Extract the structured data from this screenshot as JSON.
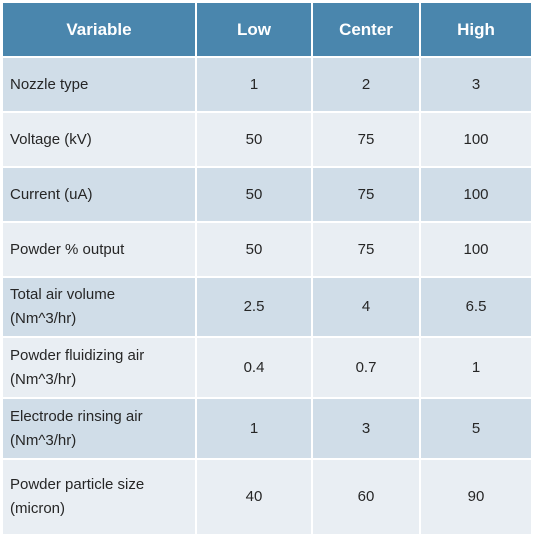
{
  "table": {
    "headers": [
      "Variable",
      "Low",
      "Center",
      "High"
    ],
    "rows": [
      [
        "Nozzle type",
        "1",
        "2",
        "3"
      ],
      [
        "Voltage (kV)",
        "50",
        "75",
        "100"
      ],
      [
        "Current (uA)",
        "50",
        "75",
        "100"
      ],
      [
        "Powder % output",
        "50",
        "75",
        "100"
      ],
      [
        "Total air volume\n(Nm^3/hr)",
        "2.5",
        "4",
        "6.5"
      ],
      [
        "Powder fluidizing air\n(Nm^3/hr)",
        "0.4",
        "0.7",
        "1"
      ],
      [
        "Electrode rinsing air\n(Nm^3/hr)",
        "1",
        "3",
        "5"
      ],
      [
        "Powder particle size\n(micron)",
        "40",
        "60",
        "90"
      ]
    ]
  },
  "colors": {
    "header_bg": "#4a86ad",
    "header_text": "#ffffff",
    "row_odd_bg": "#d0dde8",
    "row_even_bg": "#e9eef3"
  }
}
